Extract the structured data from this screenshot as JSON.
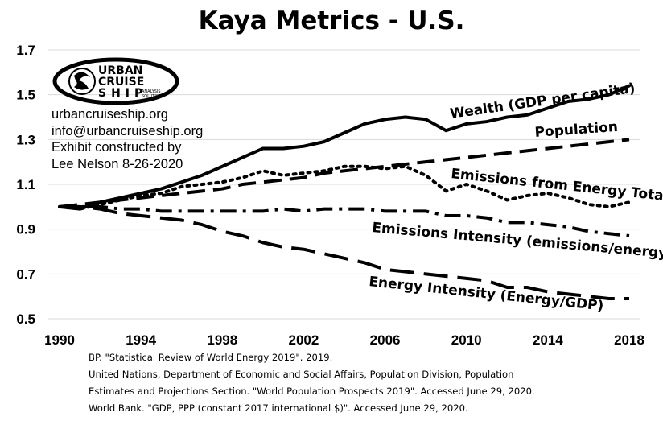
{
  "title": "Kaya Metrics - U.S.",
  "logo": {
    "line1": "URBAN",
    "line2": "CRUISE",
    "line3": "SHIP",
    "tag1": "ANALYSIS",
    "tag2": "SOLUTIONS",
    "icon": "ship-logo-icon"
  },
  "credits": [
    "urbancruiseship.org",
    "info@urbancruiseship.org",
    "Exhibit constructed by",
    "Lee Nelson 8-26-2020"
  ],
  "sources": [
    "BP. \"Statistical Review of World Energy 2019\". 2019.",
    "United Nations, Department of Economic and Social Affairs, Population Division, Population",
    "Estimates and Projections Section. \"World Population Prospects 2019\". Accessed June 29, 2020.",
    "World Bank. \"GDP, PPP (constant 2017 international $)\". Accessed June 29, 2020."
  ],
  "chart_data": {
    "type": "line",
    "title": "Kaya Metrics - U.S.",
    "xlabel": "",
    "ylabel": "",
    "xlim": [
      1990,
      2018
    ],
    "ylim": [
      0.5,
      1.7
    ],
    "x_ticks": [
      "1990",
      "1994",
      "1998",
      "2002",
      "2006",
      "2010",
      "2014",
      "2018"
    ],
    "x_tick_values": [
      1990,
      1994,
      1998,
      2002,
      2006,
      2010,
      2014,
      2018
    ],
    "y_ticks": [
      "0.5",
      "0.7",
      "0.9",
      "1.1",
      "1.3",
      "1.5",
      "1.7"
    ],
    "y_tick_values": [
      0.5,
      0.7,
      0.9,
      1.1,
      1.3,
      1.5,
      1.7
    ],
    "grid": "horizontal",
    "legend": "none",
    "x": [
      1990,
      1991,
      1992,
      1993,
      1994,
      1995,
      1996,
      1997,
      1998,
      1999,
      2000,
      2001,
      2002,
      2003,
      2004,
      2005,
      2006,
      2007,
      2008,
      2009,
      2010,
      2011,
      2012,
      2013,
      2014,
      2015,
      2016,
      2017,
      2018
    ],
    "series": [
      {
        "name": "Wealth (GDP per capita)",
        "style": "solid",
        "values": [
          1.0,
          0.99,
          1.02,
          1.04,
          1.06,
          1.08,
          1.11,
          1.14,
          1.18,
          1.22,
          1.26,
          1.26,
          1.27,
          1.29,
          1.33,
          1.37,
          1.39,
          1.4,
          1.39,
          1.34,
          1.37,
          1.38,
          1.4,
          1.41,
          1.44,
          1.47,
          1.48,
          1.5,
          1.54
        ]
      },
      {
        "name": "Population",
        "style": "dashed",
        "values": [
          1.0,
          1.01,
          1.02,
          1.03,
          1.04,
          1.05,
          1.06,
          1.07,
          1.08,
          1.1,
          1.11,
          1.12,
          1.13,
          1.15,
          1.16,
          1.17,
          1.18,
          1.19,
          1.2,
          1.21,
          1.22,
          1.23,
          1.24,
          1.25,
          1.26,
          1.27,
          1.28,
          1.29,
          1.3
        ]
      },
      {
        "name": "Emissions from Energy Total",
        "style": "dotted",
        "values": [
          1.0,
          0.99,
          1.01,
          1.03,
          1.05,
          1.06,
          1.09,
          1.1,
          1.11,
          1.13,
          1.16,
          1.14,
          1.15,
          1.16,
          1.18,
          1.18,
          1.17,
          1.18,
          1.14,
          1.07,
          1.1,
          1.07,
          1.03,
          1.05,
          1.06,
          1.04,
          1.01,
          1.0,
          1.02
        ]
      },
      {
        "name": "Emissions Intensity (emissions/energy)",
        "style": "dash-dot",
        "values": [
          1.0,
          1.0,
          1.0,
          0.99,
          0.99,
          0.98,
          0.98,
          0.98,
          0.98,
          0.98,
          0.98,
          0.99,
          0.98,
          0.99,
          0.99,
          0.99,
          0.98,
          0.98,
          0.98,
          0.96,
          0.96,
          0.95,
          0.93,
          0.93,
          0.92,
          0.91,
          0.89,
          0.88,
          0.87
        ]
      },
      {
        "name": "Energy Intensity (Energy/GDP)",
        "style": "long-dash",
        "values": [
          1.0,
          1.0,
          0.99,
          0.97,
          0.96,
          0.95,
          0.94,
          0.92,
          0.89,
          0.87,
          0.84,
          0.82,
          0.81,
          0.79,
          0.77,
          0.75,
          0.72,
          0.71,
          0.7,
          0.69,
          0.68,
          0.67,
          0.64,
          0.64,
          0.62,
          0.61,
          0.6,
          0.59,
          0.59
        ]
      }
    ]
  }
}
